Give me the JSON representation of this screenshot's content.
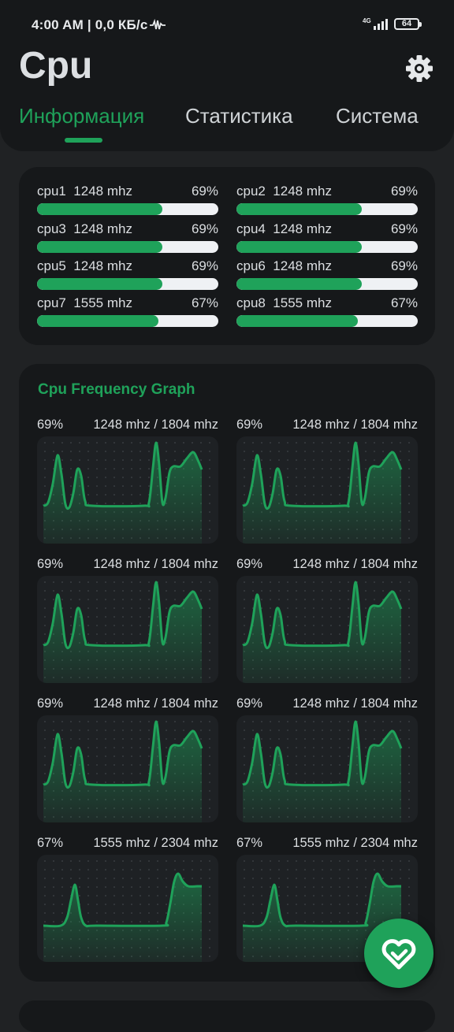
{
  "status_bar": {
    "time_speed": "4:00 AM | 0,0 КБ/с",
    "network": "4G",
    "battery": "64"
  },
  "app": {
    "title": "Cpu"
  },
  "tabs": [
    {
      "label": "Информация",
      "active": true
    },
    {
      "label": "Статистика",
      "active": false
    },
    {
      "label": "Система",
      "active": false
    }
  ],
  "cores": [
    {
      "label": "cpu1  1248 mhz",
      "percent": "69%",
      "load": 69
    },
    {
      "label": "cpu2  1248 mhz",
      "percent": "69%",
      "load": 69
    },
    {
      "label": "cpu3  1248 mhz",
      "percent": "69%",
      "load": 69
    },
    {
      "label": "cpu4  1248 mhz",
      "percent": "69%",
      "load": 69
    },
    {
      "label": "cpu5  1248 mhz",
      "percent": "69%",
      "load": 69
    },
    {
      "label": "cpu6  1248 mhz",
      "percent": "69%",
      "load": 69
    },
    {
      "label": "cpu7  1555 mhz",
      "percent": "67%",
      "load": 67
    },
    {
      "label": "cpu8  1555 mhz",
      "percent": "67%",
      "load": 67
    }
  ],
  "graph_section": {
    "title": "Cpu Frequency Graph",
    "graphs": [
      {
        "percent": "69%",
        "freq": "1248 mhz / 1804 mhz",
        "profile": "a"
      },
      {
        "percent": "69%",
        "freq": "1248 mhz / 1804 mhz",
        "profile": "a"
      },
      {
        "percent": "69%",
        "freq": "1248 mhz / 1804 mhz",
        "profile": "a"
      },
      {
        "percent": "69%",
        "freq": "1248 mhz / 1804 mhz",
        "profile": "a"
      },
      {
        "percent": "69%",
        "freq": "1248 mhz / 1804 mhz",
        "profile": "a"
      },
      {
        "percent": "69%",
        "freq": "1248 mhz / 1804 mhz",
        "profile": "a"
      },
      {
        "percent": "67%",
        "freq": "1555 mhz / 2304 mhz",
        "profile": "b"
      },
      {
        "percent": "67%",
        "freq": "1555 mhz / 2304 mhz",
        "profile": "b"
      }
    ]
  },
  "colors": {
    "accent": "#1fa25a",
    "background": "#202224",
    "card": "#16181a"
  },
  "icons": {
    "settings": "gear-icon",
    "fab": "heart-check-icon",
    "activity": "pulse-icon"
  }
}
